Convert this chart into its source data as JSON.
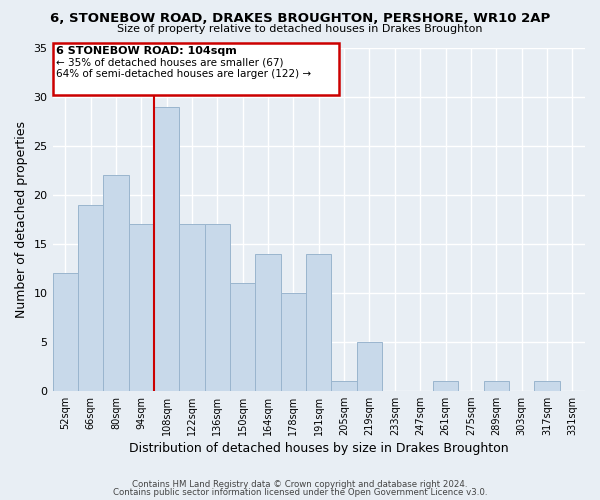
{
  "title": "6, STONEBOW ROAD, DRAKES BROUGHTON, PERSHORE, WR10 2AP",
  "subtitle": "Size of property relative to detached houses in Drakes Broughton",
  "xlabel": "Distribution of detached houses by size in Drakes Broughton",
  "ylabel": "Number of detached properties",
  "categories": [
    "52sqm",
    "66sqm",
    "80sqm",
    "94sqm",
    "108sqm",
    "122sqm",
    "136sqm",
    "150sqm",
    "164sqm",
    "178sqm",
    "191sqm",
    "205sqm",
    "219sqm",
    "233sqm",
    "247sqm",
    "261sqm",
    "275sqm",
    "289sqm",
    "303sqm",
    "317sqm",
    "331sqm"
  ],
  "values": [
    12,
    19,
    22,
    17,
    29,
    17,
    17,
    11,
    14,
    10,
    14,
    1,
    5,
    0,
    0,
    1,
    0,
    1,
    0,
    1,
    0
  ],
  "bar_color": "#c8d9ea",
  "bar_edge_color": "#9ab5ce",
  "background_color": "#e8eef4",
  "grid_color": "#ffffff",
  "annotation_text_line1": "6 STONEBOW ROAD: 104sqm",
  "annotation_text_line2": "← 35% of detached houses are smaller (67)",
  "annotation_text_line3": "64% of semi-detached houses are larger (122) →",
  "annotation_box_color": "#ffffff",
  "annotation_box_edge": "#cc0000",
  "red_line_color": "#cc0000",
  "ylim": [
    0,
    35
  ],
  "yticks": [
    0,
    5,
    10,
    15,
    20,
    25,
    30,
    35
  ],
  "footer_line1": "Contains HM Land Registry data © Crown copyright and database right 2024.",
  "footer_line2": "Contains public sector information licensed under the Open Government Licence v3.0."
}
